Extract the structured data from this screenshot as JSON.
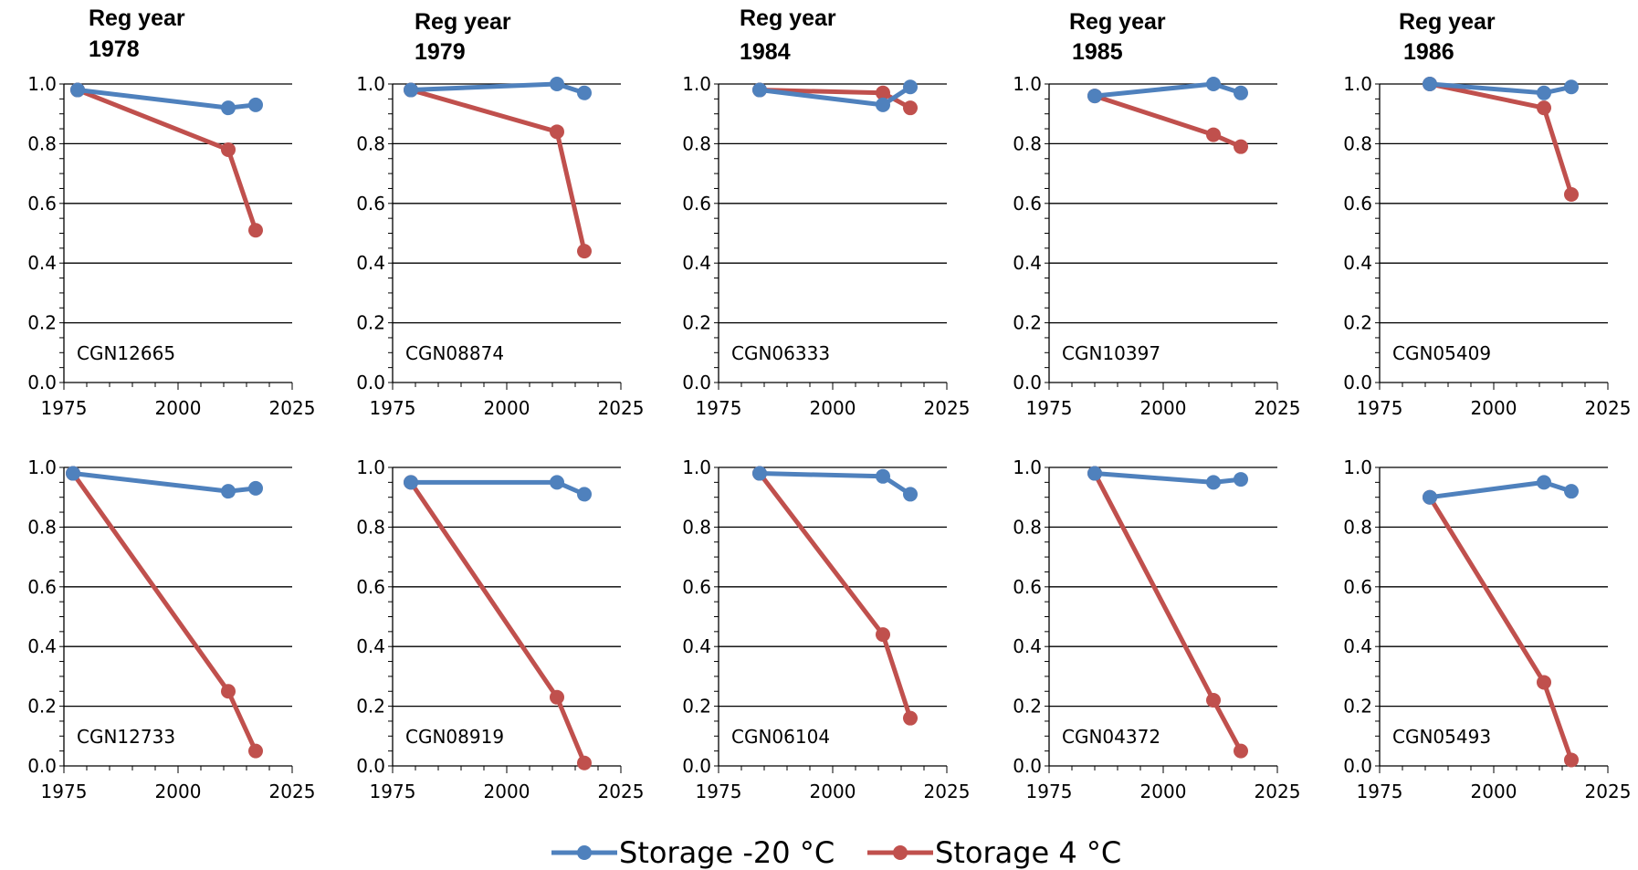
{
  "legend": {
    "items": [
      {
        "label": "Storage -20 °C",
        "color": "#4f81bd"
      },
      {
        "label": "Storage 4 °C",
        "color": "#c0504d"
      }
    ]
  },
  "chart_data": [
    {
      "type": "line",
      "title": "Reg year",
      "subtitle": "1978",
      "annotation": "CGN12665",
      "xlim": [
        1975,
        2025
      ],
      "ylim": [
        0,
        1.0
      ],
      "grid": "horizontal",
      "xticks": [
        "1975",
        "2000",
        "2025"
      ],
      "yticks": [
        "0.0",
        "0.2",
        "0.4",
        "0.6",
        "0.8",
        "1.0"
      ],
      "series": [
        {
          "name": "Storage -20 °C",
          "color": "#4f81bd",
          "points": [
            [
              1978,
              0.98
            ],
            [
              2011,
              0.92
            ],
            [
              2017,
              0.93
            ]
          ]
        },
        {
          "name": "Storage 4 °C",
          "color": "#c0504d",
          "points": [
            [
              1978,
              0.98
            ],
            [
              2011,
              0.78
            ],
            [
              2017,
              0.51
            ]
          ]
        }
      ]
    },
    {
      "type": "line",
      "title": "Reg year",
      "subtitle": "1979",
      "annotation": "CGN08874",
      "xlim": [
        1975,
        2025
      ],
      "ylim": [
        0,
        1.0
      ],
      "grid": "horizontal",
      "xticks": [
        "1975",
        "2000",
        "2025"
      ],
      "yticks": [
        "0.0",
        "0.2",
        "0.4",
        "0.6",
        "0.8",
        "1.0"
      ],
      "series": [
        {
          "name": "Storage -20 °C",
          "color": "#4f81bd",
          "points": [
            [
              1979,
              0.98
            ],
            [
              2011,
              1.0
            ],
            [
              2017,
              0.97
            ]
          ]
        },
        {
          "name": "Storage 4 °C",
          "color": "#c0504d",
          "points": [
            [
              1979,
              0.98
            ],
            [
              2011,
              0.84
            ],
            [
              2017,
              0.44
            ]
          ]
        }
      ]
    },
    {
      "type": "line",
      "title": "Reg year",
      "subtitle": "1984",
      "annotation": "CGN06333",
      "xlim": [
        1975,
        2025
      ],
      "ylim": [
        0,
        1.0
      ],
      "grid": "horizontal",
      "xticks": [
        "1975",
        "2000",
        "2025"
      ],
      "yticks": [
        "0.0",
        "0.2",
        "0.4",
        "0.6",
        "0.8",
        "1.0"
      ],
      "series": [
        {
          "name": "Storage -20 °C",
          "color": "#4f81bd",
          "points": [
            [
              1984,
              0.98
            ],
            [
              2011,
              0.93
            ],
            [
              2017,
              0.99
            ]
          ]
        },
        {
          "name": "Storage 4 °C",
          "color": "#c0504d",
          "points": [
            [
              1984,
              0.98
            ],
            [
              2011,
              0.97
            ],
            [
              2017,
              0.92
            ]
          ]
        }
      ]
    },
    {
      "type": "line",
      "title": "Reg year",
      "subtitle": "1985",
      "annotation": "CGN10397",
      "xlim": [
        1975,
        2025
      ],
      "ylim": [
        0,
        1.0
      ],
      "grid": "horizontal",
      "xticks": [
        "1975",
        "2000",
        "2025"
      ],
      "yticks": [
        "0.0",
        "0.2",
        "0.4",
        "0.6",
        "0.8",
        "1.0"
      ],
      "series": [
        {
          "name": "Storage -20 °C",
          "color": "#4f81bd",
          "points": [
            [
              1985,
              0.96
            ],
            [
              2011,
              1.0
            ],
            [
              2017,
              0.97
            ]
          ]
        },
        {
          "name": "Storage 4 °C",
          "color": "#c0504d",
          "points": [
            [
              1985,
              0.96
            ],
            [
              2011,
              0.83
            ],
            [
              2017,
              0.79
            ]
          ]
        }
      ]
    },
    {
      "type": "line",
      "title": "Reg year",
      "subtitle": "1986",
      "annotation": "CGN05409",
      "xlim": [
        1975,
        2025
      ],
      "ylim": [
        0,
        1.0
      ],
      "grid": "horizontal",
      "xticks": [
        "1975",
        "2000",
        "2025"
      ],
      "yticks": [
        "0.0",
        "0.2",
        "0.4",
        "0.6",
        "0.8",
        "1.0"
      ],
      "series": [
        {
          "name": "Storage -20 °C",
          "color": "#4f81bd",
          "points": [
            [
              1986,
              1.0
            ],
            [
              2011,
              0.97
            ],
            [
              2017,
              0.99
            ]
          ]
        },
        {
          "name": "Storage 4 °C",
          "color": "#c0504d",
          "points": [
            [
              1986,
              1.0
            ],
            [
              2011,
              0.92
            ],
            [
              2017,
              0.63
            ]
          ]
        }
      ]
    },
    {
      "type": "line",
      "title": "",
      "subtitle": "",
      "annotation": "CGN12733",
      "xlim": [
        1975,
        2025
      ],
      "ylim": [
        0,
        1.0
      ],
      "grid": "horizontal",
      "xticks": [
        "1975",
        "2000",
        "2025"
      ],
      "yticks": [
        "0.0",
        "0.2",
        "0.4",
        "0.6",
        "0.8",
        "1.0"
      ],
      "series": [
        {
          "name": "Storage -20 °C",
          "color": "#4f81bd",
          "points": [
            [
              1977,
              0.98
            ],
            [
              2011,
              0.92
            ],
            [
              2017,
              0.93
            ]
          ]
        },
        {
          "name": "Storage 4 °C",
          "color": "#c0504d",
          "points": [
            [
              1977,
              0.98
            ],
            [
              2011,
              0.25
            ],
            [
              2017,
              0.05
            ]
          ]
        }
      ]
    },
    {
      "type": "line",
      "title": "",
      "subtitle": "",
      "annotation": "CGN08919",
      "xlim": [
        1975,
        2025
      ],
      "ylim": [
        0,
        1.0
      ],
      "grid": "horizontal",
      "xticks": [
        "1975",
        "2000",
        "2025"
      ],
      "yticks": [
        "0.0",
        "0.2",
        "0.4",
        "0.6",
        "0.8",
        "1.0"
      ],
      "series": [
        {
          "name": "Storage -20 °C",
          "color": "#4f81bd",
          "points": [
            [
              1979,
              0.95
            ],
            [
              2011,
              0.95
            ],
            [
              2017,
              0.91
            ]
          ]
        },
        {
          "name": "Storage 4 °C",
          "color": "#c0504d",
          "points": [
            [
              1979,
              0.95
            ],
            [
              2011,
              0.23
            ],
            [
              2017,
              0.01
            ]
          ]
        }
      ]
    },
    {
      "type": "line",
      "title": "",
      "subtitle": "",
      "annotation": "CGN06104",
      "xlim": [
        1975,
        2025
      ],
      "ylim": [
        0,
        1.0
      ],
      "grid": "horizontal",
      "xticks": [
        "1975",
        "2000",
        "2025"
      ],
      "yticks": [
        "0.0",
        "0.2",
        "0.4",
        "0.6",
        "0.8",
        "1.0"
      ],
      "series": [
        {
          "name": "Storage -20 °C",
          "color": "#4f81bd",
          "points": [
            [
              1984,
              0.98
            ],
            [
              2011,
              0.97
            ],
            [
              2017,
              0.91
            ]
          ]
        },
        {
          "name": "Storage 4 °C",
          "color": "#c0504d",
          "points": [
            [
              1984,
              0.98
            ],
            [
              2011,
              0.44
            ],
            [
              2017,
              0.16
            ]
          ]
        }
      ]
    },
    {
      "type": "line",
      "title": "",
      "subtitle": "",
      "annotation": "CGN04372",
      "xlim": [
        1975,
        2025
      ],
      "ylim": [
        0,
        1.0
      ],
      "grid": "horizontal",
      "xticks": [
        "1975",
        "2000",
        "2025"
      ],
      "yticks": [
        "0.0",
        "0.2",
        "0.4",
        "0.6",
        "0.8",
        "1.0"
      ],
      "series": [
        {
          "name": "Storage -20 °C",
          "color": "#4f81bd",
          "points": [
            [
              1985,
              0.98
            ],
            [
              2011,
              0.95
            ],
            [
              2017,
              0.96
            ]
          ]
        },
        {
          "name": "Storage 4 °C",
          "color": "#c0504d",
          "points": [
            [
              1985,
              0.98
            ],
            [
              2011,
              0.22
            ],
            [
              2017,
              0.05
            ]
          ]
        }
      ]
    },
    {
      "type": "line",
      "title": "",
      "subtitle": "",
      "annotation": "CGN05493",
      "xlim": [
        1975,
        2025
      ],
      "ylim": [
        0,
        1.0
      ],
      "grid": "horizontal",
      "xticks": [
        "1975",
        "2000",
        "2025"
      ],
      "yticks": [
        "0.0",
        "0.2",
        "0.4",
        "0.6",
        "0.8",
        "1.0"
      ],
      "series": [
        {
          "name": "Storage -20 °C",
          "color": "#4f81bd",
          "points": [
            [
              1986,
              0.9
            ],
            [
              2011,
              0.95
            ],
            [
              2017,
              0.92
            ]
          ]
        },
        {
          "name": "Storage 4 °C",
          "color": "#c0504d",
          "points": [
            [
              1986,
              0.9
            ],
            [
              2011,
              0.28
            ],
            [
              2017,
              0.02
            ]
          ]
        }
      ]
    }
  ]
}
